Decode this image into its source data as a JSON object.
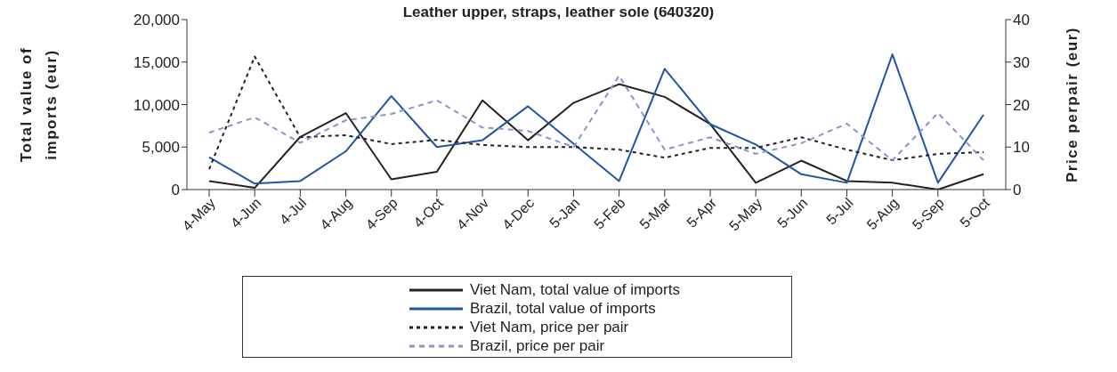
{
  "chart_data": {
    "type": "line",
    "title": "Leather upper, straps, leather sole (640320)",
    "ylabel": "Total value of imports (eur)",
    "y2label": "Price perpair (eur)",
    "categories": [
      "4-May",
      "4-Jun",
      "4-Jul",
      "4-Aug",
      "4-Sep",
      "4-Oct",
      "4-Nov",
      "4-Dec",
      "5-Jan",
      "5-Feb",
      "5-Mar",
      "5-Apr",
      "5-May",
      "5-Jun",
      "5-Jul",
      "5-Aug",
      "5-Sep",
      "5-Oct"
    ],
    "ylim": [
      0,
      20000
    ],
    "yticks": [
      {
        "value": 0,
        "label": "0"
      },
      {
        "value": 5000,
        "label": "5,000"
      },
      {
        "value": 10000,
        "label": "10,000"
      },
      {
        "value": 15000,
        "label": "15,000"
      },
      {
        "value": 20000,
        "label": "20,000"
      }
    ],
    "y2lim": [
      0,
      40
    ],
    "y2ticks": [
      0,
      10,
      20,
      30,
      40
    ],
    "grid": false,
    "legend": "bottom",
    "marker": "none",
    "series": [
      {
        "name": "Viet Nam, total value of imports",
        "color": "#222222",
        "line_style": "solid",
        "values": [
          1000,
          200,
          6200,
          9000,
          1200,
          2100,
          10500,
          5800,
          10200,
          12400,
          10900,
          7700,
          800,
          3400,
          1000,
          800,
          0,
          1800
        ]
      },
      {
        "name": "Brazil, total value of imports",
        "color": "#1f55a5",
        "line_style": "solid",
        "values": [
          3800,
          700,
          1000,
          4500,
          11000,
          5000,
          5800,
          9800,
          null,
          1000,
          14200,
          7700,
          5300,
          1800,
          800,
          15900,
          800,
          8800
        ]
      },
      {
        "name": "Viet Nam, price per pair",
        "color": "#222222",
        "line_style": "dashed",
        "axis": "y2",
        "values": [
          4.8,
          31.3,
          12.3,
          12.8,
          10.7,
          11.7,
          10.5,
          10,
          10,
          9.4,
          7.5,
          9.8,
          9.8,
          12.3,
          9.4,
          6.9,
          8.4,
          8.8
        ]
      },
      {
        "name": "Brazil, price per pair",
        "color": "#8a93d0",
        "line_style": "dashed",
        "axis": "y2",
        "values": [
          13.4,
          17,
          11,
          16.3,
          17.8,
          21,
          14.6,
          13.8,
          10,
          26.8,
          9.4,
          12.3,
          8.4,
          10.9,
          15.5,
          6.9,
          18,
          6.9
        ]
      }
    ]
  }
}
